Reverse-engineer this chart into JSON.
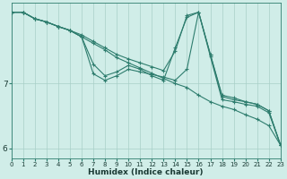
{
  "xlabel": "Humidex (Indice chaleur)",
  "background_color": "#d0ede8",
  "grid_color": "#a8cfc8",
  "line_color": "#2e7d6e",
  "xlim": [
    0,
    23
  ],
  "ylim": [
    5.85,
    8.25
  ],
  "yticks": [
    6,
    7
  ],
  "xticks": [
    0,
    1,
    2,
    3,
    4,
    5,
    6,
    7,
    8,
    9,
    10,
    11,
    12,
    13,
    14,
    15,
    16,
    17,
    18,
    19,
    20,
    21,
    22,
    23
  ],
  "lines": [
    {
      "x": [
        0,
        1,
        2,
        3,
        4,
        5,
        6,
        7,
        8,
        9,
        10,
        11,
        12,
        13,
        14,
        15,
        16,
        17,
        18,
        19,
        20,
        21,
        22,
        23
      ],
      "y": [
        8.1,
        8.1,
        8.0,
        7.95,
        7.88,
        7.82,
        7.75,
        7.65,
        7.55,
        7.45,
        7.38,
        7.32,
        7.26,
        7.2,
        7.5,
        8.05,
        8.1,
        7.45,
        6.82,
        6.78,
        6.72,
        6.68,
        6.58,
        6.05
      ]
    },
    {
      "x": [
        0,
        1,
        2,
        3,
        4,
        5,
        6,
        7,
        8,
        9,
        10,
        11,
        12,
        13,
        14,
        15,
        16,
        17,
        18,
        19,
        20,
        21,
        22,
        23
      ],
      "y": [
        8.1,
        8.1,
        8.0,
        7.95,
        7.88,
        7.82,
        7.72,
        7.15,
        7.05,
        7.12,
        7.22,
        7.18,
        7.14,
        7.1,
        7.05,
        7.22,
        8.1,
        7.42,
        6.75,
        6.72,
        6.68,
        6.65,
        6.55,
        6.05
      ]
    },
    {
      "x": [
        0,
        1,
        2,
        3,
        4,
        5,
        6,
        7,
        8,
        9,
        10,
        11,
        12,
        13,
        14,
        15,
        16,
        17,
        18,
        19,
        20,
        21,
        22,
        23
      ],
      "y": [
        8.1,
        8.1,
        8.0,
        7.95,
        7.88,
        7.82,
        7.72,
        7.62,
        7.52,
        7.4,
        7.32,
        7.24,
        7.16,
        7.08,
        7.0,
        6.94,
        6.82,
        6.72,
        6.65,
        6.6,
        6.52,
        6.45,
        6.35,
        6.05
      ]
    },
    {
      "x": [
        0,
        1,
        2,
        3,
        4,
        5,
        6,
        7,
        8,
        9,
        10,
        11,
        12,
        13,
        14,
        15,
        16,
        17,
        18,
        19,
        20,
        21,
        22,
        23
      ],
      "y": [
        8.1,
        8.1,
        8.0,
        7.95,
        7.88,
        7.82,
        7.72,
        7.3,
        7.12,
        7.18,
        7.28,
        7.22,
        7.12,
        7.05,
        7.55,
        8.02,
        8.1,
        7.45,
        6.8,
        6.75,
        6.72,
        6.68,
        6.58,
        6.05
      ]
    }
  ]
}
